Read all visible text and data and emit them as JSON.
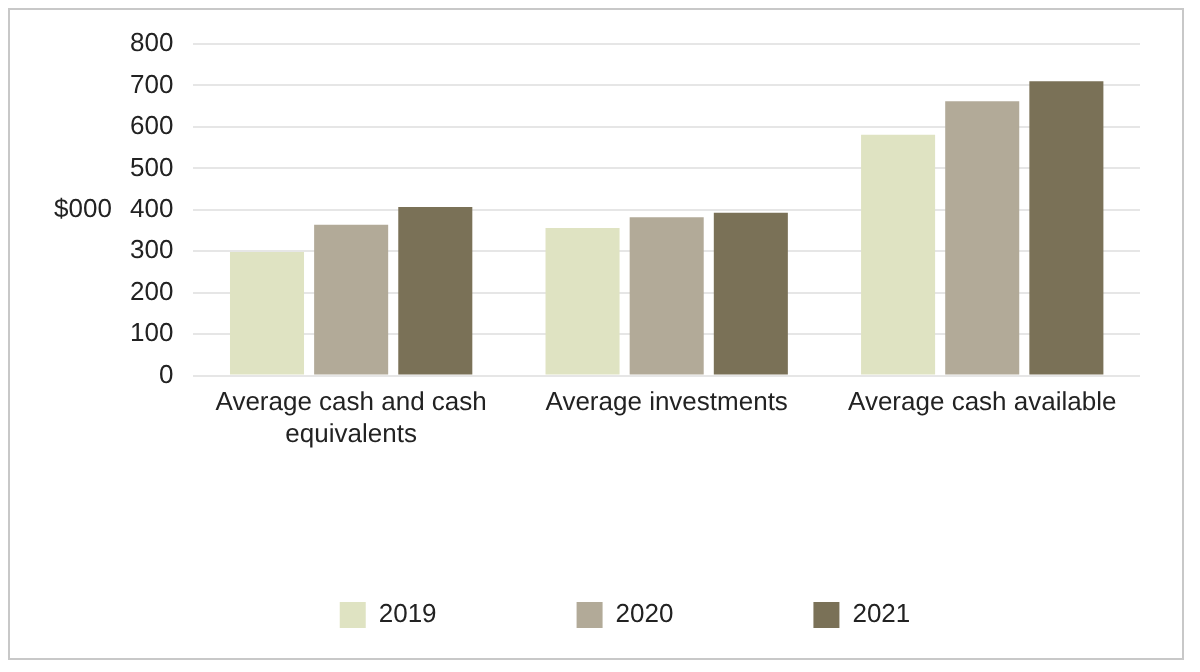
{
  "chart_data": {
    "type": "bar",
    "ylabel": "$000",
    "categories": [
      "Average cash and cash equivalents",
      "Average investments",
      "Average cash available"
    ],
    "series": [
      {
        "name": "2019",
        "color": "#dfe3c2",
        "values": [
          298,
          356,
          581
        ]
      },
      {
        "name": "2020",
        "color": "#b2aa98",
        "values": [
          364,
          382,
          662
        ]
      },
      {
        "name": "2021",
        "color": "#7a7157",
        "values": [
          407,
          393,
          710
        ]
      }
    ],
    "ylim": [
      0,
      800
    ],
    "yticks": [
      0,
      100,
      200,
      300,
      400,
      500,
      600,
      700,
      800
    ],
    "grid": "y",
    "legend": "bottom"
  }
}
